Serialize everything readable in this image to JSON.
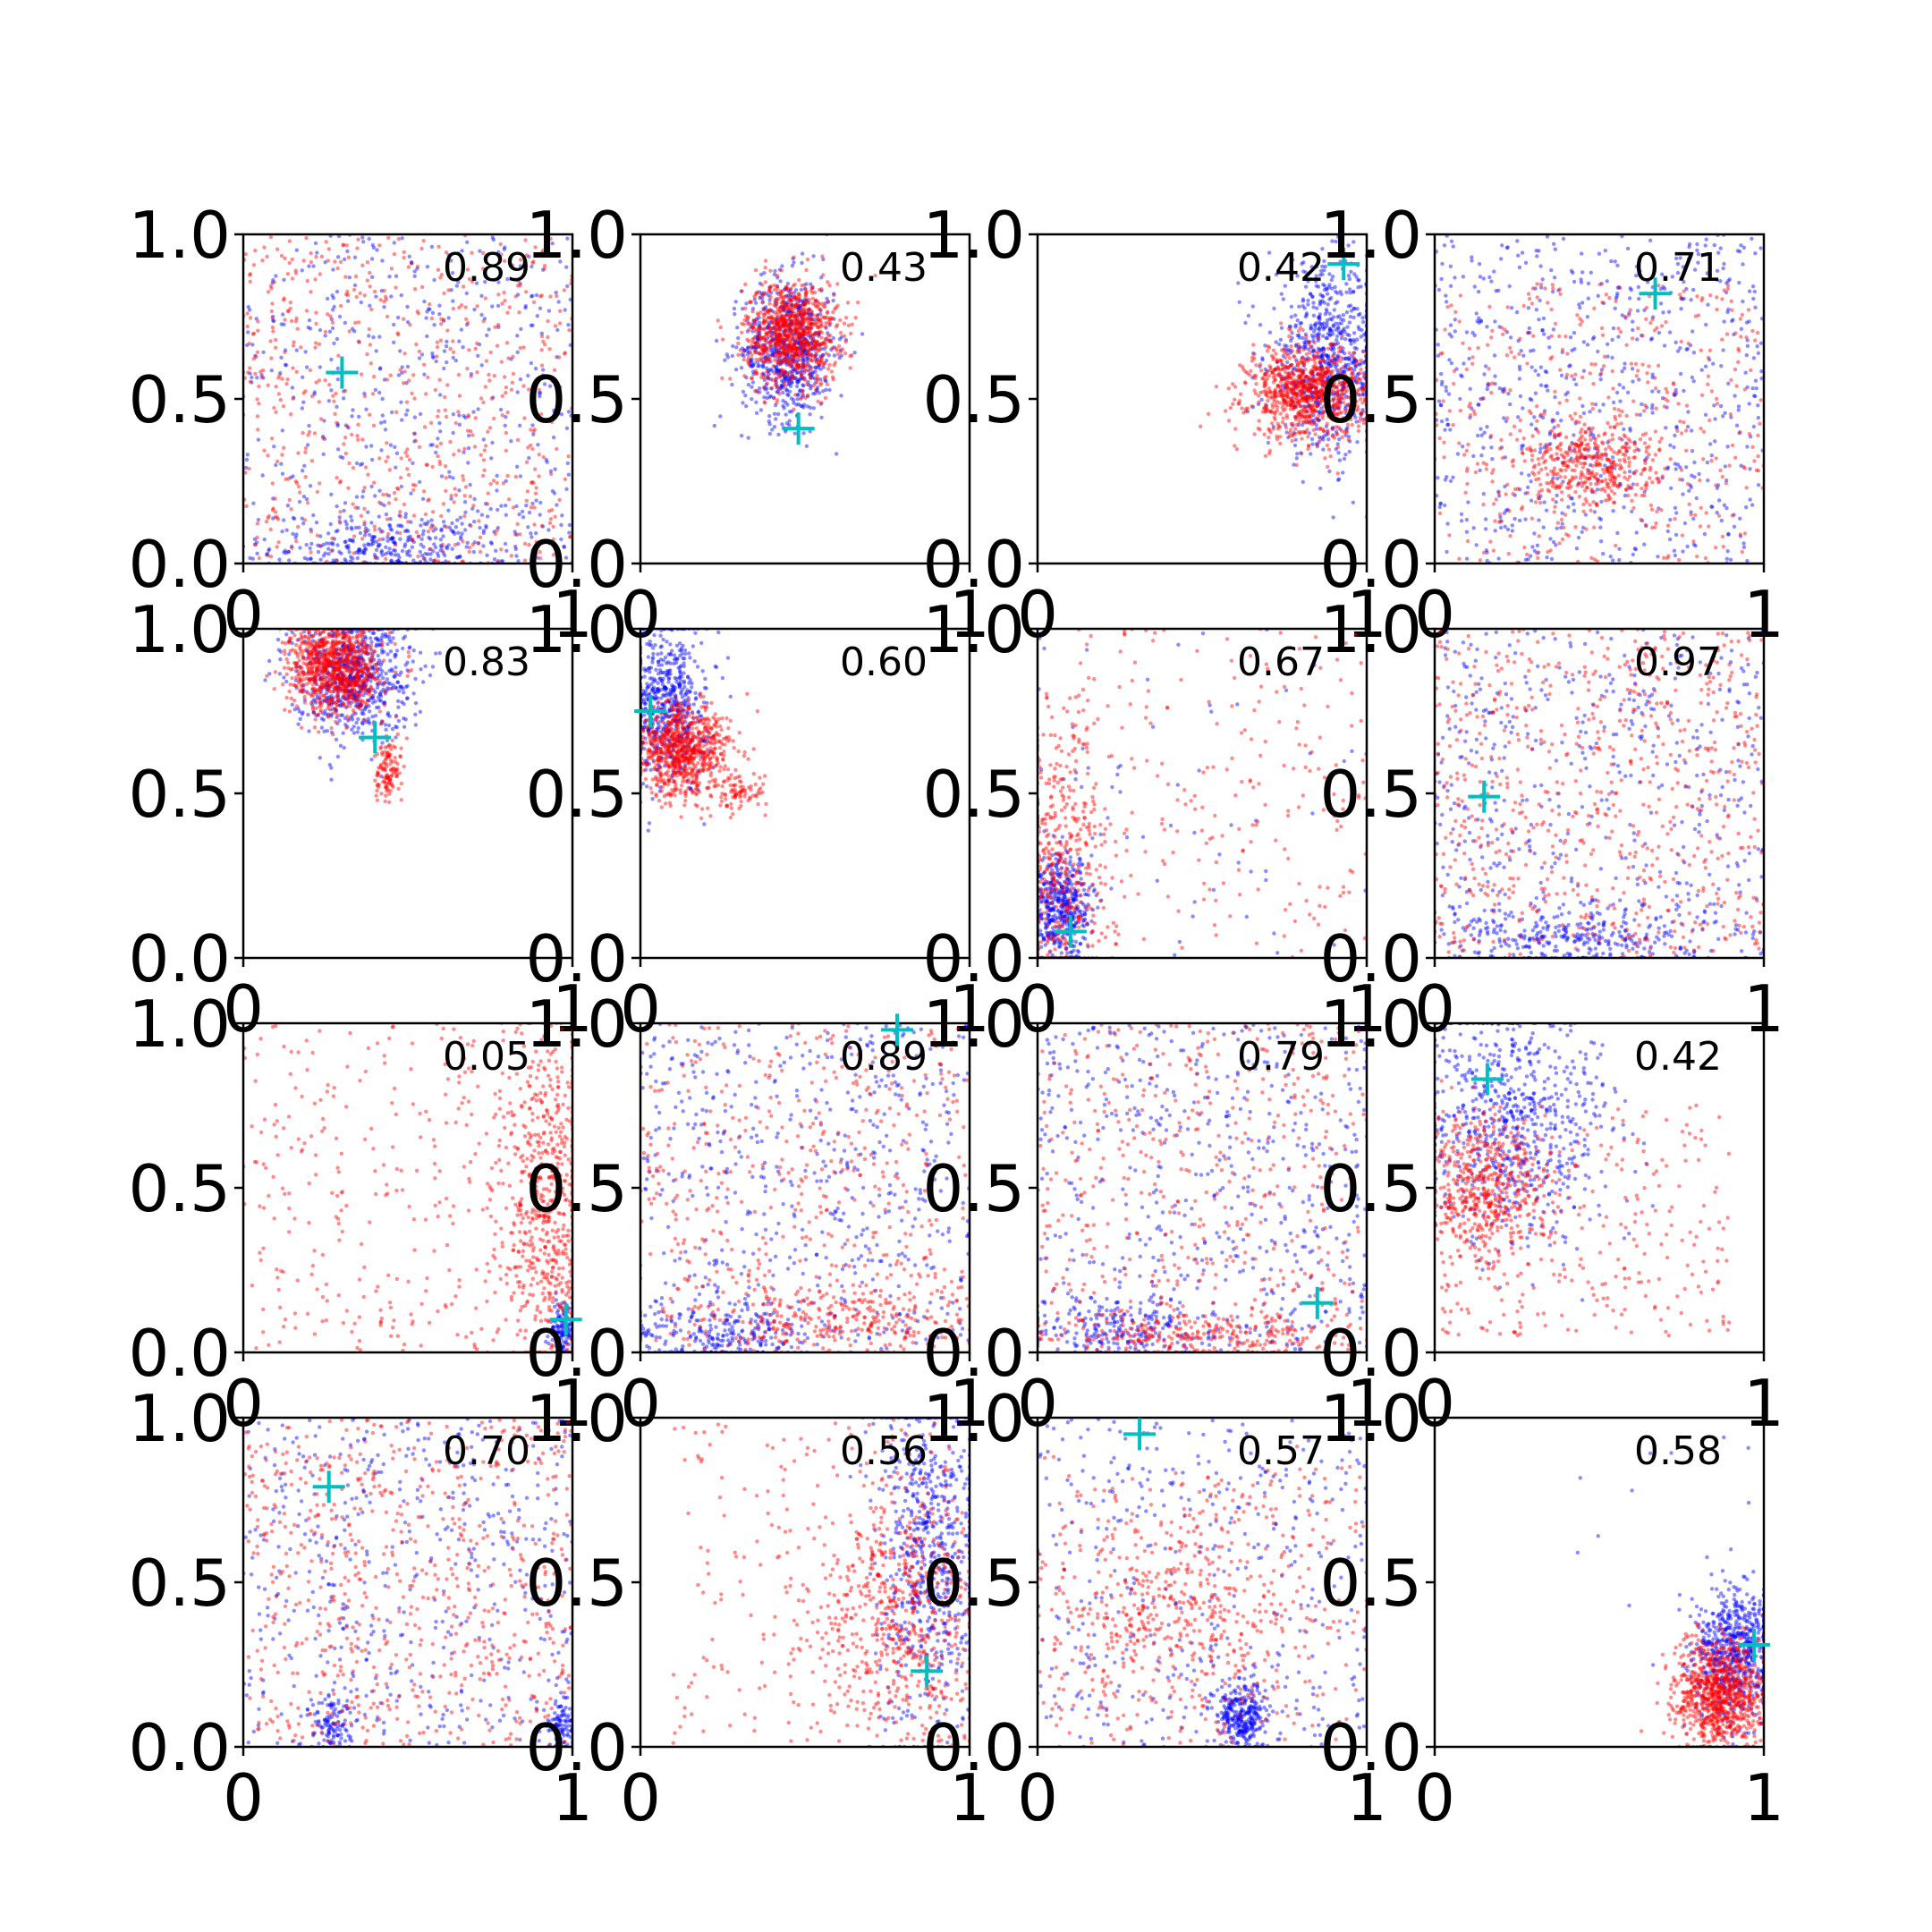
{
  "chart_data": {
    "type": "scatter",
    "layout": {
      "rows": 4,
      "cols": 4
    },
    "xlim": [
      0,
      1
    ],
    "ylim": [
      0,
      1
    ],
    "x_ticks": [
      "0",
      "1"
    ],
    "y_ticks": [
      "0.0",
      "0.5",
      "1.0"
    ],
    "colors": {
      "series_a": "#0000ff",
      "series_b": "#ff0000",
      "marker": "#00bfbf"
    },
    "panels": [
      {
        "annotation": "0.89",
        "marker": [
          0.3,
          0.58
        ],
        "clusters": [
          {
            "series": "blue",
            "n": 500,
            "shape": "box",
            "x": [
              0.0,
              1.0
            ],
            "y": [
              0.0,
              1.0
            ]
          },
          {
            "series": "blue",
            "n": 300,
            "shape": "gauss",
            "x": 0.45,
            "y": 0.05,
            "sx": 0.18,
            "sy": 0.05
          },
          {
            "series": "red",
            "n": 650,
            "shape": "box",
            "x": [
              0.0,
              1.0
            ],
            "y": [
              0.0,
              1.0
            ]
          }
        ]
      },
      {
        "annotation": "0.43",
        "marker": [
          0.48,
          0.41
        ],
        "clusters": [
          {
            "series": "blue",
            "n": 700,
            "shape": "gauss",
            "x": 0.45,
            "y": 0.65,
            "sx": 0.07,
            "sy": 0.11
          },
          {
            "series": "red",
            "n": 900,
            "shape": "gauss",
            "x": 0.46,
            "y": 0.7,
            "sx": 0.07,
            "sy": 0.08
          }
        ]
      },
      {
        "annotation": "0.42",
        "marker": [
          0.93,
          0.91
        ],
        "clusters": [
          {
            "series": "blue",
            "n": 700,
            "shape": "gauss",
            "x": 0.88,
            "y": 0.62,
            "sx": 0.09,
            "sy": 0.14
          },
          {
            "series": "red",
            "n": 900,
            "shape": "gauss",
            "x": 0.82,
            "y": 0.52,
            "sx": 0.09,
            "sy": 0.07
          }
        ]
      },
      {
        "annotation": "0.71",
        "marker": [
          0.67,
          0.82
        ],
        "clusters": [
          {
            "series": "blue",
            "n": 700,
            "shape": "box",
            "x": [
              0.0,
              1.0
            ],
            "y": [
              0.0,
              1.0
            ]
          },
          {
            "series": "red",
            "n": 400,
            "shape": "gauss",
            "x": 0.47,
            "y": 0.3,
            "sx": 0.1,
            "sy": 0.07
          },
          {
            "series": "red",
            "n": 400,
            "shape": "box",
            "x": [
              0.0,
              1.0
            ],
            "y": [
              0.0,
              0.85
            ]
          }
        ]
      },
      {
        "annotation": "0.83",
        "marker": [
          0.4,
          0.67
        ],
        "clusters": [
          {
            "series": "blue",
            "n": 700,
            "shape": "gauss",
            "x": 0.33,
            "y": 0.86,
            "sx": 0.09,
            "sy": 0.09
          },
          {
            "series": "red",
            "n": 900,
            "shape": "gauss",
            "x": 0.28,
            "y": 0.88,
            "sx": 0.07,
            "sy": 0.07
          },
          {
            "series": "red",
            "n": 120,
            "shape": "gauss",
            "x": 0.44,
            "y": 0.57,
            "sx": 0.02,
            "sy": 0.05
          }
        ]
      },
      {
        "annotation": "0.60",
        "marker": [
          0.03,
          0.75
        ],
        "clusters": [
          {
            "series": "blue",
            "n": 600,
            "shape": "gauss",
            "x": 0.08,
            "y": 0.78,
            "sx": 0.06,
            "sy": 0.12
          },
          {
            "series": "red",
            "n": 800,
            "shape": "gauss",
            "x": 0.13,
            "y": 0.63,
            "sx": 0.07,
            "sy": 0.07
          },
          {
            "series": "red",
            "n": 80,
            "shape": "gauss",
            "x": 0.3,
            "y": 0.5,
            "sx": 0.04,
            "sy": 0.03
          }
        ]
      },
      {
        "annotation": "0.67",
        "marker": [
          0.1,
          0.08
        ],
        "clusters": [
          {
            "series": "blue",
            "n": 500,
            "shape": "gauss",
            "x": 0.07,
            "y": 0.15,
            "sx": 0.05,
            "sy": 0.08
          },
          {
            "series": "red",
            "n": 400,
            "shape": "gauss",
            "x": 0.07,
            "y": 0.28,
            "sx": 0.07,
            "sy": 0.22
          },
          {
            "series": "red",
            "n": 250,
            "shape": "box",
            "x": [
              0.0,
              1.0
            ],
            "y": [
              0.0,
              1.0
            ]
          },
          {
            "series": "blue",
            "n": 60,
            "shape": "box",
            "x": [
              0.0,
              1.0
            ],
            "y": [
              0.0,
              1.0
            ]
          }
        ]
      },
      {
        "annotation": "0.97",
        "marker": [
          0.15,
          0.49
        ],
        "clusters": [
          {
            "series": "blue",
            "n": 500,
            "shape": "box",
            "x": [
              0.0,
              1.0
            ],
            "y": [
              0.0,
              1.0
            ]
          },
          {
            "series": "blue",
            "n": 300,
            "shape": "gauss",
            "x": 0.45,
            "y": 0.06,
            "sx": 0.2,
            "sy": 0.05
          },
          {
            "series": "red",
            "n": 700,
            "shape": "box",
            "x": [
              0.0,
              1.0
            ],
            "y": [
              0.0,
              1.0
            ]
          }
        ]
      },
      {
        "annotation": "0.05",
        "marker": [
          0.98,
          0.1
        ],
        "clusters": [
          {
            "series": "red",
            "n": 550,
            "shape": "gauss",
            "x": 0.92,
            "y": 0.45,
            "sx": 0.07,
            "sy": 0.25
          },
          {
            "series": "red",
            "n": 350,
            "shape": "box",
            "x": [
              0.0,
              1.0
            ],
            "y": [
              0.0,
              1.0
            ]
          },
          {
            "series": "blue",
            "n": 150,
            "shape": "gauss",
            "x": 0.97,
            "y": 0.06,
            "sx": 0.02,
            "sy": 0.05
          }
        ]
      },
      {
        "annotation": "0.89",
        "marker": [
          0.78,
          0.98
        ],
        "clusters": [
          {
            "series": "blue",
            "n": 550,
            "shape": "box",
            "x": [
              0.0,
              1.0
            ],
            "y": [
              0.0,
              1.0
            ]
          },
          {
            "series": "blue",
            "n": 250,
            "shape": "gauss",
            "x": 0.25,
            "y": 0.06,
            "sx": 0.15,
            "sy": 0.05
          },
          {
            "series": "red",
            "n": 500,
            "shape": "box",
            "x": [
              0.0,
              1.0
            ],
            "y": [
              0.0,
              1.0
            ]
          },
          {
            "series": "red",
            "n": 250,
            "shape": "gauss",
            "x": 0.6,
            "y": 0.1,
            "sx": 0.2,
            "sy": 0.06
          }
        ]
      },
      {
        "annotation": "0.79",
        "marker": [
          0.85,
          0.15
        ],
        "clusters": [
          {
            "series": "blue",
            "n": 550,
            "shape": "box",
            "x": [
              0.0,
              1.0
            ],
            "y": [
              0.0,
              1.0
            ]
          },
          {
            "series": "blue",
            "n": 200,
            "shape": "gauss",
            "x": 0.25,
            "y": 0.06,
            "sx": 0.15,
            "sy": 0.05
          },
          {
            "series": "red",
            "n": 500,
            "shape": "box",
            "x": [
              0.0,
              1.0
            ],
            "y": [
              0.0,
              1.0
            ]
          },
          {
            "series": "red",
            "n": 250,
            "shape": "gauss",
            "x": 0.5,
            "y": 0.05,
            "sx": 0.2,
            "sy": 0.04
          }
        ]
      },
      {
        "annotation": "0.42",
        "marker": [
          0.16,
          0.83
        ],
        "clusters": [
          {
            "series": "blue",
            "n": 700,
            "shape": "gauss",
            "x": 0.25,
            "y": 0.7,
            "sx": 0.15,
            "sy": 0.18
          },
          {
            "series": "red",
            "n": 500,
            "shape": "gauss",
            "x": 0.15,
            "y": 0.5,
            "sx": 0.1,
            "sy": 0.1
          },
          {
            "series": "red",
            "n": 300,
            "shape": "box",
            "x": [
              0.0,
              0.9
            ],
            "y": [
              0.05,
              0.75
            ]
          }
        ]
      },
      {
        "annotation": "0.70",
        "marker": [
          0.26,
          0.79
        ],
        "clusters": [
          {
            "series": "blue",
            "n": 500,
            "shape": "box",
            "x": [
              0.0,
              1.0
            ],
            "y": [
              0.0,
              1.0
            ]
          },
          {
            "series": "blue",
            "n": 100,
            "shape": "gauss",
            "x": 0.27,
            "y": 0.07,
            "sx": 0.03,
            "sy": 0.04
          },
          {
            "series": "blue",
            "n": 100,
            "shape": "gauss",
            "x": 0.97,
            "y": 0.06,
            "sx": 0.02,
            "sy": 0.04
          },
          {
            "series": "red",
            "n": 700,
            "shape": "box",
            "x": [
              0.0,
              1.0
            ],
            "y": [
              0.0,
              1.0
            ]
          }
        ]
      },
      {
        "annotation": "0.56",
        "marker": [
          0.87,
          0.23
        ],
        "clusters": [
          {
            "series": "blue",
            "n": 650,
            "shape": "gauss",
            "x": 0.88,
            "y": 0.6,
            "sx": 0.08,
            "sy": 0.25
          },
          {
            "series": "red",
            "n": 550,
            "shape": "gauss",
            "x": 0.78,
            "y": 0.4,
            "sx": 0.12,
            "sy": 0.2
          },
          {
            "series": "red",
            "n": 250,
            "shape": "box",
            "x": [
              0.1,
              1.0
            ],
            "y": [
              0.0,
              1.0
            ]
          }
        ]
      },
      {
        "annotation": "0.57",
        "marker": [
          0.31,
          0.95
        ],
        "clusters": [
          {
            "series": "blue",
            "n": 400,
            "shape": "box",
            "x": [
              0.0,
              1.0
            ],
            "y": [
              0.0,
              1.0
            ]
          },
          {
            "series": "blue",
            "n": 300,
            "shape": "gauss",
            "x": 0.62,
            "y": 0.1,
            "sx": 0.04,
            "sy": 0.05
          },
          {
            "series": "red",
            "n": 500,
            "shape": "gauss",
            "x": 0.4,
            "y": 0.4,
            "sx": 0.22,
            "sy": 0.18
          },
          {
            "series": "red",
            "n": 200,
            "shape": "box",
            "x": [
              0.0,
              1.0
            ],
            "y": [
              0.0,
              0.85
            ]
          }
        ]
      },
      {
        "annotation": "0.58",
        "marker": [
          0.97,
          0.31
        ],
        "clusters": [
          {
            "series": "blue",
            "n": 650,
            "shape": "gauss",
            "x": 0.91,
            "y": 0.28,
            "sx": 0.06,
            "sy": 0.1
          },
          {
            "series": "red",
            "n": 900,
            "shape": "gauss",
            "x": 0.86,
            "y": 0.16,
            "sx": 0.07,
            "sy": 0.08
          },
          {
            "series": "blue",
            "n": 15,
            "shape": "box",
            "x": [
              0.4,
              1.0
            ],
            "y": [
              0.4,
              1.0
            ]
          }
        ]
      }
    ]
  }
}
